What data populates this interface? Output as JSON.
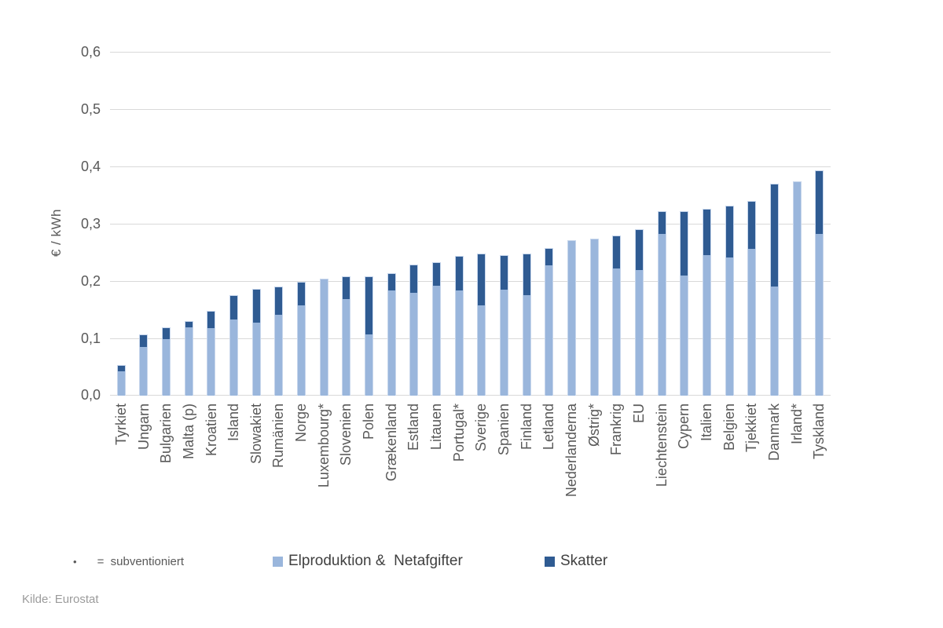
{
  "colors": {
    "light_blue": "#9ab6dc",
    "dark_blue": "#2f5b92",
    "grid": "#d9d9d9",
    "axis_text": "#595959",
    "legend_text": "#404040",
    "source_text": "#9b9b9b"
  },
  "y_axis": {
    "title": "€ / kWh",
    "ticks": [
      "0,0",
      "0,1",
      "0,2",
      "0,3",
      "0,4",
      "0,5",
      "0,6"
    ]
  },
  "note": {
    "bullet": "•",
    "text": "=  subventioniert"
  },
  "legend": {
    "items": [
      {
        "label": "Elproduktion &  Netafgifter",
        "color": "#9ab6dc",
        "icon": "light-blue-square"
      },
      {
        "label": "Skatter",
        "color": "#2f5b92",
        "icon": "dark-blue-square"
      }
    ]
  },
  "source": "Kilde: Eurostat",
  "chart_data": {
    "type": "bar",
    "stacked": true,
    "title": "",
    "xlabel": "",
    "ylabel": "€ / kWh",
    "ylim": [
      0,
      0.6
    ],
    "grid": true,
    "legend_position": "bottom",
    "categories": [
      "Tyrkiet",
      "Ungarn",
      "Bulgarien",
      "Malta (p)",
      "Kroatien",
      "Island",
      "Slowakiet",
      "Rumänien",
      "Norge",
      "Luxembourg*",
      "Slovenien",
      "Polen",
      "Grækenland",
      "Estland",
      "Litauen",
      "Portugal*",
      "Sverige",
      "Spanien",
      "Finland",
      "Letland",
      "Nederlanderna",
      "Østrig*",
      "Frankrig",
      "EU",
      "Liechtenstein",
      "Cypern",
      "Italien",
      "Belgien",
      "Tjekkiet",
      "Danmark",
      "Irland*",
      "Tyskland"
    ],
    "series": [
      {
        "name": "Elproduktion & Netafgifter",
        "values": [
          0.043,
          0.085,
          0.099,
          0.119,
          0.118,
          0.133,
          0.128,
          0.141,
          0.157,
          0.203,
          0.169,
          0.107,
          0.184,
          0.179,
          0.192,
          0.184,
          0.158,
          0.185,
          0.176,
          0.227,
          0.27,
          0.273,
          0.222,
          0.219,
          0.282,
          0.21,
          0.245,
          0.241,
          0.256,
          0.19,
          0.373,
          0.282
        ]
      },
      {
        "name": "Skatter",
        "values": [
          0.01,
          0.02,
          0.019,
          0.009,
          0.029,
          0.041,
          0.058,
          0.048,
          0.04,
          0.0,
          0.039,
          0.1,
          0.029,
          0.048,
          0.04,
          0.059,
          0.089,
          0.059,
          0.071,
          0.029,
          0.0,
          0.0,
          0.056,
          0.07,
          0.039,
          0.111,
          0.08,
          0.089,
          0.082,
          0.178,
          0.0,
          0.109
        ]
      }
    ]
  }
}
